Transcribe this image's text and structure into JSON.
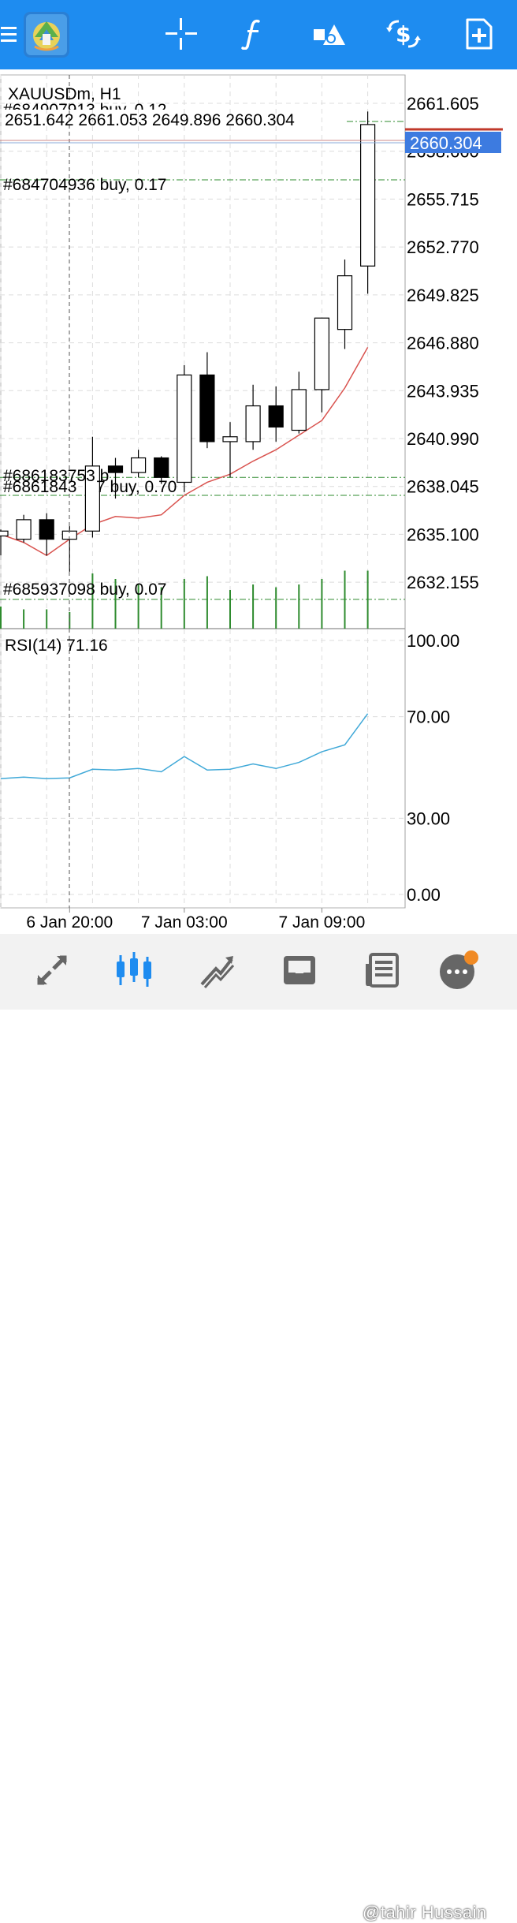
{
  "toolbar": {
    "icons": [
      "menu-icon",
      "metatrader-logo-icon",
      "crosshair-icon",
      "function-icon",
      "objects-icon",
      "symbol-dollar-icon",
      "new-order-icon"
    ],
    "color": "#1e8cf0"
  },
  "chart": {
    "symbol_label": "XAUUSDm, H1",
    "ohlc_label": "2651.642 2661.053 2649.896 2660.304",
    "rsi_label": "RSI(14) 71.16",
    "current_price": "2660.304",
    "clipped_order_label": "#684907913 buy, 0.12",
    "order_lines": [
      {
        "label": "#684704936 buy, 0.17",
        "price": 2656.9
      },
      {
        "label": "#686183753 buy, 0.70",
        "price": 2638.6
      },
      {
        "label": "#686184327 buy, 0.70",
        "price": 2637.5
      },
      {
        "label": "#685937098 buy, 0.07",
        "price": 2631.1
      }
    ],
    "order_overlap_a": "#686183753 b",
    "order_overlap_b": "#6861843",
    "order_overlap_c": "7 buy, 0.70",
    "colors": {
      "order_line": "#2e8b2e",
      "ma_line": "#d9534f",
      "rsi_line": "#40a9d8",
      "current_price_bg": "#3d7be0",
      "high_line": "#c0392b"
    }
  },
  "chart_data": [
    {
      "type": "candlestick",
      "title": "XAUUSDm, H1",
      "ylim": [
        2629.3,
        2663.4
      ],
      "y_ticks": [
        "2661.605",
        "2658.660",
        "2655.715",
        "2652.770",
        "2649.825",
        "2646.880",
        "2643.935",
        "2640.990",
        "2638.045",
        "2635.100",
        "2632.155"
      ],
      "x_ticks": [
        "6 Jan 20:00",
        "7 Jan 03:00",
        "7 Jan 09:00"
      ],
      "candles": [
        {
          "o": 2635.0,
          "h": 2635.4,
          "c": 2635.3,
          "l": 2633.8
        },
        {
          "o": 2634.8,
          "h": 2636.3,
          "c": 2636.0,
          "l": 2634.6
        },
        {
          "o": 2636.0,
          "h": 2636.4,
          "c": 2634.8,
          "l": 2633.8
        },
        {
          "o": 2634.8,
          "h": 2635.6,
          "c": 2635.3,
          "l": 2632.8
        },
        {
          "o": 2635.3,
          "h": 2641.1,
          "c": 2639.3,
          "l": 2634.9
        },
        {
          "o": 2639.3,
          "h": 2639.8,
          "c": 2638.9,
          "l": 2637.3
        },
        {
          "o": 2638.9,
          "h": 2640.3,
          "c": 2639.8,
          "l": 2638.6
        },
        {
          "o": 2639.8,
          "h": 2639.9,
          "c": 2638.6,
          "l": 2638.2
        },
        {
          "o": 2638.3,
          "h": 2645.5,
          "c": 2644.9,
          "l": 2637.7
        },
        {
          "o": 2644.9,
          "h": 2646.3,
          "c": 2640.8,
          "l": 2640.4
        },
        {
          "o": 2640.8,
          "h": 2642.0,
          "c": 2641.1,
          "l": 2638.6
        },
        {
          "o": 2640.8,
          "h": 2644.3,
          "c": 2643.0,
          "l": 2640.3
        },
        {
          "o": 2643.0,
          "h": 2644.2,
          "c": 2641.7,
          "l": 2640.8
        },
        {
          "o": 2641.5,
          "h": 2645.1,
          "c": 2644.0,
          "l": 2641.3
        },
        {
          "o": 2644.0,
          "h": 2648.4,
          "c": 2648.4,
          "l": 2642.6
        },
        {
          "o": 2647.7,
          "h": 2652.0,
          "c": 2651.0,
          "l": 2646.5
        },
        {
          "o": 2651.6,
          "h": 2661.1,
          "c": 2660.3,
          "l": 2649.9
        }
      ],
      "moving_average": [
        2635.1,
        2634.6,
        2633.8,
        2634.8,
        2635.7,
        2636.2,
        2636.1,
        2636.3,
        2637.5,
        2638.3,
        2638.8,
        2639.6,
        2640.3,
        2641.2,
        2642.1,
        2644.1,
        2646.6
      ]
    },
    {
      "type": "bar",
      "series": [
        {
          "name": "volume",
          "values": [
            0.4,
            0.35,
            0.35,
            0.3,
            1.0,
            0.9,
            0.8,
            0.75,
            0.9,
            0.95,
            0.7,
            0.8,
            0.75,
            0.8,
            0.9,
            1.05,
            1.05
          ]
        }
      ]
    },
    {
      "type": "line",
      "title": "RSI(14) 71.16",
      "ylim": [
        0,
        100
      ],
      "y_ticks": [
        "100.00",
        "70.00",
        "30.00",
        "0.00"
      ],
      "series": [
        {
          "name": "RSI(14)",
          "values": [
            45.6,
            46.2,
            45.6,
            45.9,
            49.3,
            49.0,
            49.6,
            48.3,
            54.3,
            49.0,
            49.3,
            51.4,
            49.6,
            52.0,
            56.2,
            58.9,
            71.16
          ]
        }
      ]
    }
  ],
  "bottom_nav": {
    "items": [
      "quotes-icon",
      "chart-icon",
      "trade-icon",
      "history-icon",
      "news-icon",
      "messages-icon"
    ],
    "watermark": "@tahir Hussain"
  }
}
